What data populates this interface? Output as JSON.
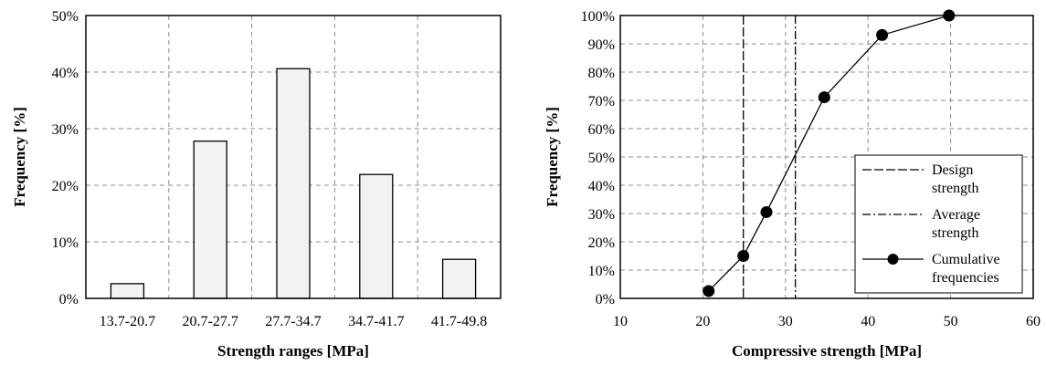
{
  "chart_data": [
    {
      "type": "bar",
      "categories": [
        "13.7-20.7",
        "20.7-27.7",
        "27.7-34.7",
        "34.7-41.7",
        "41.7-49.8"
      ],
      "values": [
        2.6,
        27.8,
        40.6,
        21.9,
        6.9
      ],
      "title": "",
      "xlabel": "Strength ranges [MPa]",
      "ylabel": "Frequency [%]",
      "ylim": [
        0,
        50
      ],
      "yticks": [
        "0%",
        "10%",
        "20%",
        "30%",
        "40%",
        "50%"
      ],
      "grid": "dashed",
      "bar_fill": "#f2f2f2"
    },
    {
      "type": "line",
      "title": "",
      "xlabel": "Compressive strength [MPa]",
      "ylabel": "Frequency [%]",
      "xlim": [
        10,
        60
      ],
      "ylim": [
        0,
        100
      ],
      "xticks": [
        "10",
        "20",
        "30",
        "40",
        "50",
        "60"
      ],
      "yticks": [
        "0%",
        "10%",
        "20%",
        "30%",
        "40%",
        "50%",
        "60%",
        "70%",
        "80%",
        "90%",
        "100%"
      ],
      "grid": "dashed",
      "legend_position": "bottom-right",
      "series": [
        {
          "name": "Cumulative frequencies",
          "x": [
            20.7,
            24.9,
            27.7,
            34.7,
            41.7,
            49.8
          ],
          "y": [
            2.6,
            15,
            30.5,
            71.1,
            93.1,
            100
          ]
        }
      ],
      "vlines": [
        {
          "name": "Design strength",
          "x": 24.9,
          "style": "dashed"
        },
        {
          "name": "Average strength",
          "x": 31.2,
          "style": "dashdot"
        }
      ],
      "legend": [
        {
          "label_lines": [
            "Design",
            "strength"
          ],
          "style": "dashed"
        },
        {
          "label_lines": [
            "Average",
            "strength"
          ],
          "style": "dashdot"
        },
        {
          "label_lines": [
            "Cumulative",
            "frequencies"
          ],
          "style": "line-marker"
        }
      ]
    }
  ]
}
